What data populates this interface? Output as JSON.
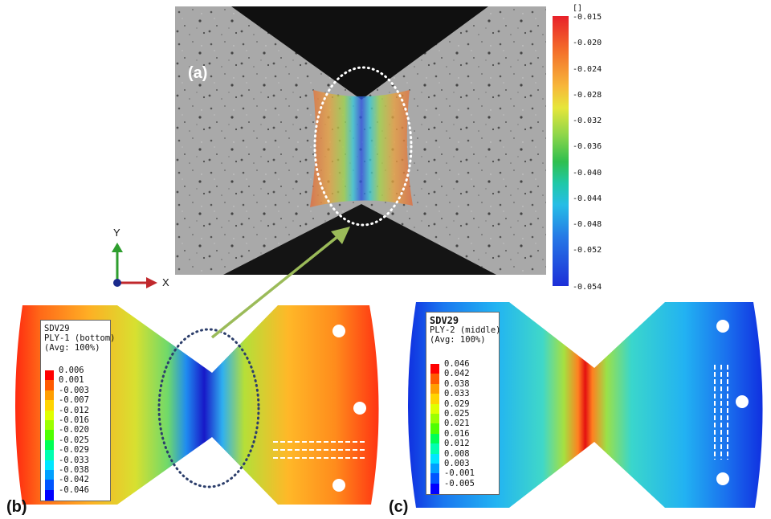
{
  "panel_a": {
    "label": "(a)",
    "colorbar": {
      "unit": "[]",
      "ticks": [
        "-0.015",
        "-0.020",
        "-0.024",
        "-0.028",
        "-0.032",
        "-0.036",
        "-0.040",
        "-0.044",
        "-0.048",
        "-0.052",
        "-0.054"
      ]
    }
  },
  "axes": {
    "y_label": "Y",
    "x_label": "X"
  },
  "panel_b": {
    "label": "(b)",
    "legend": {
      "title_lines": [
        "SDV29",
        "PLY-1 (bottom)",
        "(Avg: 100%)"
      ],
      "values": [
        "0.006",
        "0.001",
        "-0.003",
        "-0.007",
        "-0.012",
        "-0.016",
        "-0.020",
        "-0.025",
        "-0.029",
        "-0.033",
        "-0.038",
        "-0.042",
        "-0.046"
      ]
    }
  },
  "panel_c": {
    "label": "(c)",
    "legend": {
      "title_lines": [
        "SDV29",
        "PLY-2 (middle)",
        "(Avg: 100%)"
      ],
      "values": [
        "0.046",
        "0.042",
        "0.038",
        "0.033",
        "0.029",
        "0.025",
        "0.021",
        "0.016",
        "0.012",
        "0.008",
        "0.003",
        "-0.001",
        "-0.005"
      ]
    }
  },
  "colors": {
    "contour_scale": [
      "#ff0000",
      "#ff5a00",
      "#ff9e00",
      "#ffd400",
      "#e0ff00",
      "#9cff00",
      "#4fff00",
      "#00ff54",
      "#00ffb0",
      "#00e6ff",
      "#00a0ff",
      "#0055ff",
      "#0000ff"
    ],
    "arrow": "#9bbb59",
    "ellipse_dark": "#2c3e6b",
    "ellipse_light": "#ffffff",
    "axis_y": "#2e9e2e",
    "axis_x": "#c0282c",
    "axis_origin": "#1a2a8c"
  }
}
